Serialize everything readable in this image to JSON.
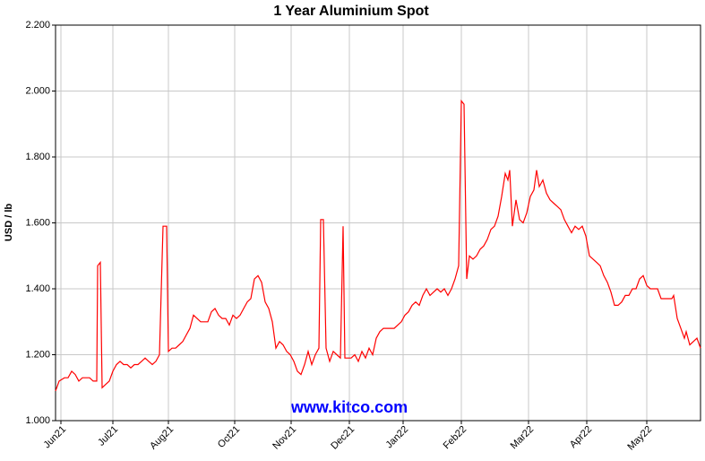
{
  "chart_data": {
    "type": "line",
    "title": "1 Year Aluminium Spot",
    "y_label": "USD / lb",
    "annotation": "www.kitco.com",
    "xlim": [
      0,
      720
    ],
    "xticks": [
      {
        "value": 6,
        "label": "Jun21"
      },
      {
        "value": 64,
        "label": "Jul21"
      },
      {
        "value": 126,
        "label": "Aug21"
      },
      {
        "value": 200,
        "label": "Oct21"
      },
      {
        "value": 263,
        "label": "Nov21"
      },
      {
        "value": 328,
        "label": "Dec21"
      },
      {
        "value": 388,
        "label": "Jan22"
      },
      {
        "value": 453,
        "label": "Feb22"
      },
      {
        "value": 528,
        "label": "Mar22"
      },
      {
        "value": 593,
        "label": "Apr22"
      },
      {
        "value": 660,
        "label": "May22"
      }
    ],
    "ylim": [
      1.0,
      2.2
    ],
    "yticks": [
      {
        "value": 1.0,
        "label": "1.000"
      },
      {
        "value": 1.2,
        "label": "1.200"
      },
      {
        "value": 1.4,
        "label": "1.400"
      },
      {
        "value": 1.6,
        "label": "1.600"
      },
      {
        "value": 1.8,
        "label": "1.800"
      },
      {
        "value": 2.0,
        "label": "2.000"
      },
      {
        "value": 2.2,
        "label": "2.200"
      }
    ],
    "grid": true,
    "series": [
      {
        "color": "#ff0000",
        "x": [
          0,
          4,
          10,
          14,
          18,
          22,
          26,
          30,
          34,
          38,
          42,
          46,
          47,
          50,
          52,
          56,
          60,
          64,
          68,
          72,
          76,
          80,
          84,
          88,
          92,
          96,
          100,
          104,
          108,
          112,
          116,
          120,
          124,
          126,
          130,
          134,
          138,
          142,
          146,
          150,
          154,
          158,
          162,
          166,
          170,
          174,
          178,
          182,
          186,
          190,
          194,
          198,
          202,
          206,
          210,
          214,
          218,
          222,
          226,
          230,
          234,
          238,
          242,
          246,
          250,
          254,
          258,
          262,
          266,
          270,
          274,
          278,
          282,
          286,
          290,
          294,
          296,
          299,
          302,
          306,
          310,
          314,
          318,
          321,
          323,
          326,
          330,
          334,
          338,
          342,
          346,
          350,
          354,
          358,
          362,
          366,
          370,
          374,
          378,
          382,
          386,
          390,
          394,
          398,
          402,
          406,
          410,
          414,
          418,
          422,
          426,
          430,
          434,
          438,
          442,
          446,
          450,
          453,
          456,
          459,
          462,
          466,
          470,
          474,
          478,
          482,
          486,
          490,
          494,
          498,
          502,
          505,
          507,
          510,
          514,
          518,
          522,
          526,
          530,
          534,
          537,
          540,
          544,
          548,
          552,
          556,
          560,
          564,
          568,
          572,
          576,
          580,
          584,
          588,
          592,
          596,
          600,
          604,
          608,
          612,
          616,
          620,
          624,
          628,
          632,
          636,
          640,
          644,
          648,
          652,
          656,
          660,
          664,
          668,
          672,
          676,
          680,
          684,
          688,
          690,
          694,
          698,
          702,
          704,
          708,
          712,
          716,
          720
        ],
        "values": [
          1.09,
          1.12,
          1.13,
          1.13,
          1.15,
          1.14,
          1.12,
          1.13,
          1.13,
          1.13,
          1.12,
          1.12,
          1.47,
          1.48,
          1.1,
          1.11,
          1.12,
          1.15,
          1.17,
          1.18,
          1.17,
          1.17,
          1.16,
          1.17,
          1.17,
          1.18,
          1.19,
          1.18,
          1.17,
          1.18,
          1.2,
          1.59,
          1.59,
          1.21,
          1.22,
          1.22,
          1.23,
          1.24,
          1.26,
          1.28,
          1.32,
          1.31,
          1.3,
          1.3,
          1.3,
          1.33,
          1.34,
          1.32,
          1.31,
          1.31,
          1.29,
          1.32,
          1.31,
          1.32,
          1.34,
          1.36,
          1.37,
          1.43,
          1.44,
          1.42,
          1.36,
          1.34,
          1.3,
          1.22,
          1.24,
          1.23,
          1.21,
          1.2,
          1.18,
          1.15,
          1.14,
          1.17,
          1.21,
          1.17,
          1.2,
          1.22,
          1.61,
          1.61,
          1.22,
          1.18,
          1.21,
          1.2,
          1.19,
          1.59,
          1.19,
          1.19,
          1.19,
          1.2,
          1.18,
          1.21,
          1.19,
          1.22,
          1.2,
          1.25,
          1.27,
          1.28,
          1.28,
          1.28,
          1.28,
          1.29,
          1.3,
          1.32,
          1.33,
          1.35,
          1.36,
          1.35,
          1.38,
          1.4,
          1.38,
          1.39,
          1.4,
          1.39,
          1.4,
          1.38,
          1.4,
          1.43,
          1.47,
          1.97,
          1.96,
          1.43,
          1.5,
          1.49,
          1.5,
          1.52,
          1.53,
          1.55,
          1.58,
          1.59,
          1.62,
          1.68,
          1.75,
          1.73,
          1.76,
          1.59,
          1.67,
          1.61,
          1.6,
          1.63,
          1.68,
          1.7,
          1.76,
          1.71,
          1.73,
          1.69,
          1.67,
          1.66,
          1.65,
          1.64,
          1.61,
          1.59,
          1.57,
          1.59,
          1.58,
          1.59,
          1.56,
          1.5,
          1.49,
          1.48,
          1.47,
          1.44,
          1.42,
          1.39,
          1.35,
          1.35,
          1.36,
          1.38,
          1.38,
          1.4,
          1.4,
          1.43,
          1.44,
          1.41,
          1.4,
          1.4,
          1.4,
          1.37,
          1.37,
          1.37,
          1.37,
          1.38,
          1.31,
          1.28,
          1.25,
          1.27,
          1.23,
          1.24,
          1.25,
          1.22
        ]
      }
    ]
  }
}
